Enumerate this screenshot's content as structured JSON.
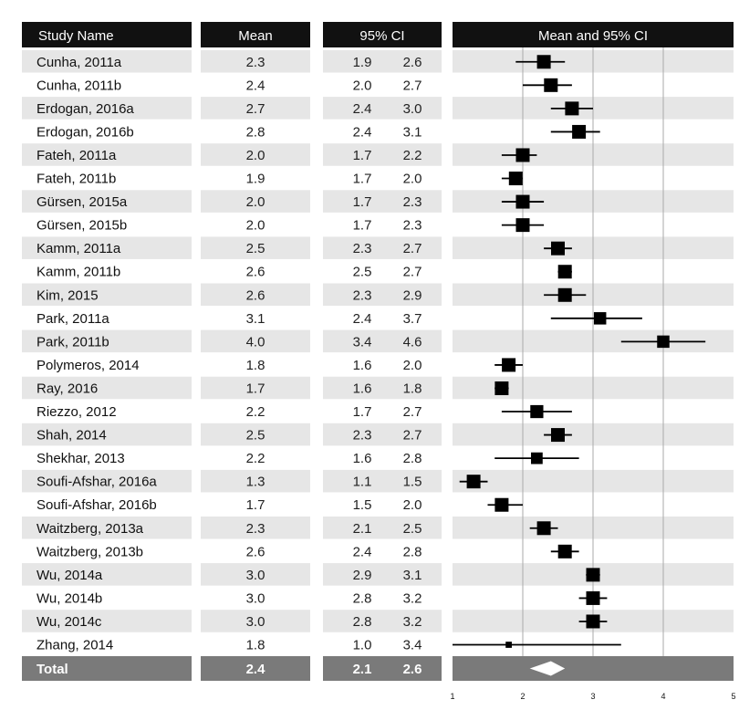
{
  "chart_data": {
    "type": "forest",
    "headers": {
      "name": "Study Name",
      "mean": "Mean",
      "ci": "95% CI",
      "plot": "Mean and 95% CI"
    },
    "rows": [
      {
        "name": "Cunha, 2011a",
        "mean": "2.3",
        "lo": "1.9",
        "hi": "2.6",
        "weight": 1.0
      },
      {
        "name": "Cunha, 2011b",
        "mean": "2.4",
        "lo": "2.0",
        "hi": "2.7",
        "weight": 1.0
      },
      {
        "name": "Erdogan, 2016a",
        "mean": "2.7",
        "lo": "2.4",
        "hi": "3.0",
        "weight": 1.0
      },
      {
        "name": "Erdogan, 2016b",
        "mean": "2.8",
        "lo": "2.4",
        "hi": "3.1",
        "weight": 1.0
      },
      {
        "name": "Fateh, 2011a",
        "mean": "2.0",
        "lo": "1.7",
        "hi": "2.2",
        "weight": 1.0
      },
      {
        "name": "Fateh, 2011b",
        "mean": "1.9",
        "lo": "1.7",
        "hi": "2.0",
        "weight": 1.0
      },
      {
        "name": "Gürsen, 2015a",
        "mean": "2.0",
        "lo": "1.7",
        "hi": "2.3",
        "weight": 1.0
      },
      {
        "name": "Gürsen, 2015b",
        "mean": "2.0",
        "lo": "1.7",
        "hi": "2.3",
        "weight": 1.0
      },
      {
        "name": "Kamm, 2011a",
        "mean": "2.5",
        "lo": "2.3",
        "hi": "2.7",
        "weight": 1.0
      },
      {
        "name": "Kamm, 2011b",
        "mean": "2.6",
        "lo": "2.5",
        "hi": "2.7",
        "weight": 1.0
      },
      {
        "name": "Kim, 2015",
        "mean": "2.6",
        "lo": "2.3",
        "hi": "2.9",
        "weight": 1.0
      },
      {
        "name": "Park, 2011a",
        "mean": "3.1",
        "lo": "2.4",
        "hi": "3.7",
        "weight": 0.9
      },
      {
        "name": "Park, 2011b",
        "mean": "4.0",
        "lo": "3.4",
        "hi": "4.6",
        "weight": 0.9
      },
      {
        "name": "Polymeros, 2014",
        "mean": "1.8",
        "lo": "1.6",
        "hi": "2.0",
        "weight": 1.0
      },
      {
        "name": "Ray, 2016",
        "mean": "1.7",
        "lo": "1.6",
        "hi": "1.8",
        "weight": 1.0
      },
      {
        "name": "Riezzo, 2012",
        "mean": "2.2",
        "lo": "1.7",
        "hi": "2.7",
        "weight": 0.95
      },
      {
        "name": "Shah, 2014",
        "mean": "2.5",
        "lo": "2.3",
        "hi": "2.7",
        "weight": 1.0
      },
      {
        "name": "Shekhar, 2013",
        "mean": "2.2",
        "lo": "1.6",
        "hi": "2.8",
        "weight": 0.85
      },
      {
        "name": "Soufi-Afshar, 2016a",
        "mean": "1.3",
        "lo": "1.1",
        "hi": "1.5",
        "weight": 1.0
      },
      {
        "name": "Soufi-Afshar, 2016b",
        "mean": "1.7",
        "lo": "1.5",
        "hi": "2.0",
        "weight": 1.0
      },
      {
        "name": "Waitzberg, 2013a",
        "mean": "2.3",
        "lo": "2.1",
        "hi": "2.5",
        "weight": 1.0
      },
      {
        "name": "Waitzberg, 2013b",
        "mean": "2.6",
        "lo": "2.4",
        "hi": "2.8",
        "weight": 1.0
      },
      {
        "name": "Wu, 2014a",
        "mean": "3.0",
        "lo": "2.9",
        "hi": "3.1",
        "weight": 1.0
      },
      {
        "name": "Wu, 2014b",
        "mean": "3.0",
        "lo": "2.8",
        "hi": "3.2",
        "weight": 1.0
      },
      {
        "name": "Wu, 2014c",
        "mean": "3.0",
        "lo": "2.8",
        "hi": "3.2",
        "weight": 1.0
      },
      {
        "name": "Zhang, 2014",
        "mean": "1.8",
        "lo": "1.0",
        "hi": "3.4",
        "weight": 0.45
      }
    ],
    "total": {
      "name": "Total",
      "mean": "2.4",
      "lo": "2.1",
      "hi": "2.6"
    },
    "x_ticks": [
      "1",
      "2",
      "3",
      "4",
      "5"
    ],
    "xlim": [
      1,
      5
    ],
    "gridlines_at": [
      2,
      3,
      4
    ],
    "colors": {
      "header_bg": "#111111",
      "row_stripe": "#e6e6e6",
      "row_plain": "#ffffff",
      "total_bg": "#7a7a7a",
      "marker": "#000000",
      "gridline": "#aaaaaa"
    }
  }
}
